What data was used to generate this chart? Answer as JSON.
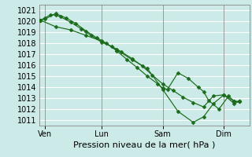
{
  "xlabel": "Pression niveau de la mer( hPa )",
  "ylim": [
    1010.5,
    1021.5
  ],
  "yticks": [
    1011,
    1012,
    1013,
    1014,
    1015,
    1016,
    1017,
    1018,
    1019,
    1020,
    1021
  ],
  "background_color": "#cceae7",
  "grid_color": "#ffffff",
  "line_color": "#1a6b1a",
  "marker_color": "#1a6b1a",
  "xtick_positions": [
    0.08,
    1.0,
    2.0,
    3.0
  ],
  "xtick_labels": [
    "Ven",
    "Lun",
    "Sam",
    "Dim"
  ],
  "xlim": [
    -0.02,
    3.42
  ],
  "vlines": [
    0.08,
    1.0,
    2.0,
    3.0
  ],
  "series": [
    {
      "x": [
        0.0,
        0.08,
        0.17,
        0.25,
        0.33,
        0.5,
        0.67,
        0.83,
        1.0,
        1.17,
        1.33,
        1.5,
        1.67,
        1.83,
        2.0,
        2.17,
        2.33,
        2.5,
        2.67,
        2.83,
        3.0,
        3.17,
        3.25
      ],
      "y": [
        1020.1,
        1020.3,
        1020.6,
        1020.55,
        1020.4,
        1019.9,
        1019.3,
        1018.7,
        1018.1,
        1017.7,
        1017.2,
        1016.6,
        1015.9,
        1015.1,
        1014.3,
        1013.7,
        1013.1,
        1012.6,
        1012.2,
        1013.2,
        1013.3,
        1012.7,
        1012.7
      ]
    },
    {
      "x": [
        0.0,
        0.08,
        0.25,
        0.42,
        0.58,
        0.75,
        0.92,
        1.08,
        1.25,
        1.42,
        1.58,
        1.75,
        1.92,
        2.0,
        2.08,
        2.25,
        2.42,
        2.58,
        2.67,
        2.75,
        2.92,
        3.08,
        3.17,
        3.25
      ],
      "y": [
        1020.1,
        1020.2,
        1020.7,
        1020.3,
        1019.8,
        1019.1,
        1018.5,
        1018.0,
        1017.3,
        1016.5,
        1015.8,
        1015.0,
        1014.3,
        1013.9,
        1013.8,
        1015.3,
        1014.8,
        1014.0,
        1013.6,
        1012.8,
        1012.0,
        1013.2,
        1012.7,
        1012.7
      ]
    },
    {
      "x": [
        0.0,
        0.25,
        0.5,
        0.75,
        1.0,
        1.25,
        1.5,
        1.75,
        2.0,
        2.25,
        2.5,
        2.67,
        2.83,
        3.0,
        3.17,
        3.25
      ],
      "y": [
        1020.1,
        1019.5,
        1019.2,
        1018.7,
        1018.2,
        1017.4,
        1016.5,
        1015.7,
        1013.8,
        1011.8,
        1010.8,
        1011.3,
        1012.5,
        1013.3,
        1012.5,
        1012.7
      ]
    }
  ]
}
